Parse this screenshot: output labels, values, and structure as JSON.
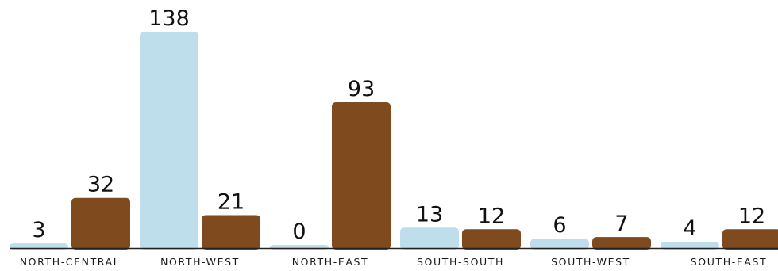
{
  "chart_data": {
    "type": "bar",
    "categories": [
      "NORTH-CENTRAL",
      "NORTH-WEST",
      "NORTH-EAST",
      "SOUTH-SOUTH",
      "SOUTH-WEST",
      "SOUTH-EAST"
    ],
    "series": [
      {
        "color": "#bfdeeb",
        "values": [
          3,
          138,
          0,
          13,
          6,
          4
        ]
      },
      {
        "color": "#7e4a1e",
        "values": [
          32,
          21,
          93,
          12,
          7,
          12
        ]
      }
    ],
    "ylim": [
      0,
      138
    ],
    "grid": false,
    "legend": "none"
  }
}
